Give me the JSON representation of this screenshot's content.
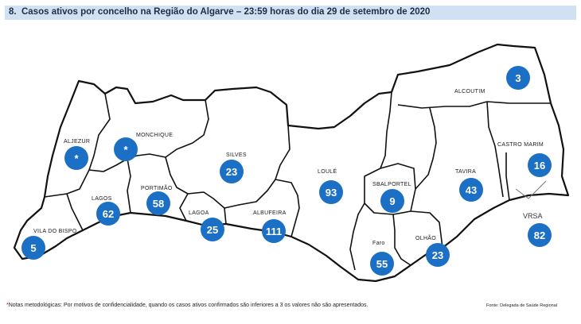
{
  "header": {
    "number": "8.",
    "title": "Casos ativos por concelho na Região do Algarve – 23:59 horas do dia 29 de setembro de 2020"
  },
  "colors": {
    "bubble": "#1b6fc4",
    "header_bg": "#cfe1f3",
    "border": "#111111"
  },
  "municipalities": [
    {
      "id": "aljezur",
      "label": "ALJEZUR",
      "value": "*"
    },
    {
      "id": "monchique",
      "label": "MONCHIQUE",
      "value": "*"
    },
    {
      "id": "silves",
      "label": "SILVES",
      "value": "23"
    },
    {
      "id": "loule",
      "label": "LOULÉ",
      "value": "93"
    },
    {
      "id": "alcoutim",
      "label": "ALCOUTIM",
      "value": "3"
    },
    {
      "id": "castro-marim",
      "label": "CASTRO MARIM",
      "value": "16"
    },
    {
      "id": "tavira",
      "label": "TAVIRA",
      "value": "43"
    },
    {
      "id": "sbalportel",
      "label": "SBALPORTEL",
      "value": "9"
    },
    {
      "id": "portimao",
      "label": "PORTIMÃO",
      "value": "58"
    },
    {
      "id": "lagos",
      "label": "LAGOS",
      "value": "62"
    },
    {
      "id": "lagoa",
      "label": "LAGOA",
      "value": "25"
    },
    {
      "id": "albufeira",
      "label": "ALBUFEIRA",
      "value": "111"
    },
    {
      "id": "faro",
      "label": "Faro",
      "value": "55"
    },
    {
      "id": "olhao",
      "label": "OLHÃO",
      "value": "23"
    },
    {
      "id": "vila-do-bispo",
      "label": "VILA DO BISPO",
      "value": "5"
    },
    {
      "id": "vrsa",
      "label": "VRSA",
      "value": "82"
    }
  ],
  "footnote": {
    "asterisk": "*",
    "text": "Notas metodológicas: Por motivos de confidencialidade, quando os casos ativos confirmados são inferiores a 3 os valores não são apresentados."
  },
  "source": "Fonte: Delegada de Saúde Regional"
}
